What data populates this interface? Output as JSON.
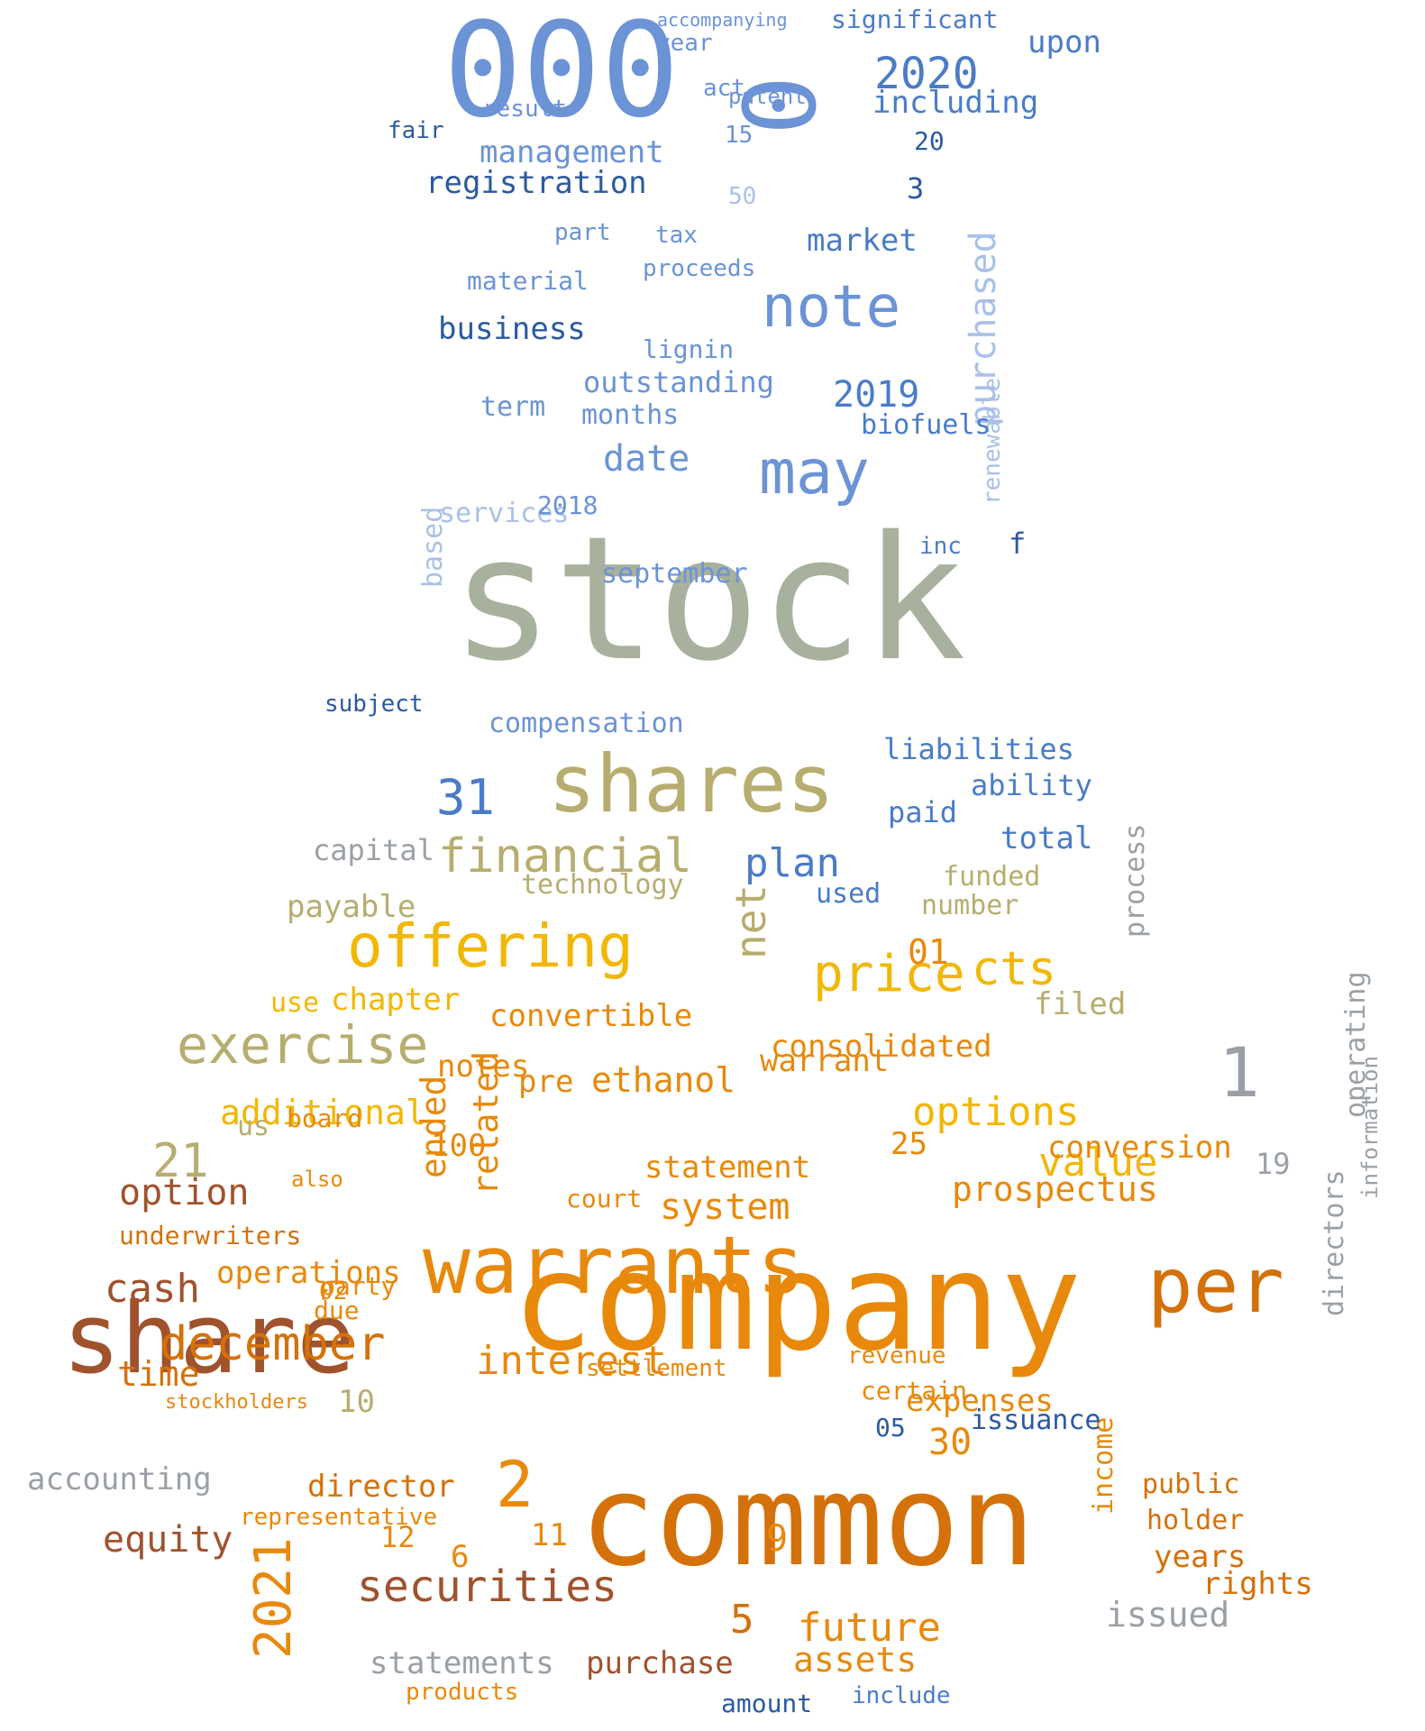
{
  "colors": {
    "blue_dark": "#2c5aa0",
    "blue": "#4a7cc7",
    "blue_mid": "#6b93d6",
    "blue_light": "#a9c1e6",
    "sage": "#a7b19d",
    "khaki": "#b7ad6f",
    "gold": "#f2b705",
    "orange": "#e8890c",
    "orange_dark": "#d4710a",
    "rust": "#a0522d",
    "gray": "#9aa0a6"
  },
  "words": [
    {
      "t": "stock",
      "c": "sage"
    },
    {
      "t": "company",
      "c": "orange"
    },
    {
      "t": "common",
      "c": "orange_dark"
    },
    {
      "t": "000",
      "c": "blue_mid"
    },
    {
      "t": "share",
      "c": "rust"
    },
    {
      "t": "warrants",
      "c": "orange"
    },
    {
      "t": "shares",
      "c": "khaki"
    },
    {
      "t": "per",
      "c": "orange_dark"
    },
    {
      "t": "note",
      "c": "blue_mid"
    },
    {
      "t": "may",
      "c": "blue_mid"
    },
    {
      "t": "0",
      "c": "blue_mid"
    },
    {
      "t": "purchased",
      "c": "blue_light"
    },
    {
      "t": "offering",
      "c": "gold"
    },
    {
      "t": "exercise",
      "c": "khaki"
    },
    {
      "t": "price",
      "c": "gold"
    },
    {
      "t": "financial",
      "c": "khaki"
    },
    {
      "t": "securities",
      "c": "rust"
    },
    {
      "t": "december",
      "c": "orange_dark"
    },
    {
      "t": "1",
      "c": "gray"
    },
    {
      "t": "2",
      "c": "orange"
    },
    {
      "t": "2021",
      "c": "orange"
    },
    {
      "t": "2020",
      "c": "blue"
    },
    {
      "t": "options",
      "c": "gold"
    },
    {
      "t": "interest",
      "c": "orange"
    },
    {
      "t": "prospectus",
      "c": "orange"
    },
    {
      "t": "value",
      "c": "gold"
    },
    {
      "t": "future",
      "c": "orange"
    },
    {
      "t": "cts",
      "c": "gold"
    },
    {
      "t": "plan",
      "c": "blue"
    },
    {
      "t": "31",
      "c": "blue"
    },
    {
      "t": "additional",
      "c": "gold"
    },
    {
      "t": "ethanol",
      "c": "orange"
    },
    {
      "t": "renewable",
      "c": "blue_light"
    },
    {
      "t": "net",
      "c": "khaki"
    },
    {
      "t": "process",
      "c": "gray"
    },
    {
      "t": "business",
      "c": "blue_dark"
    },
    {
      "t": "registration",
      "c": "blue_dark"
    },
    {
      "t": "management",
      "c": "blue_mid"
    },
    {
      "t": "date",
      "c": "blue_mid"
    },
    {
      "t": "2019",
      "c": "blue"
    },
    {
      "t": "outstanding",
      "c": "blue_mid"
    },
    {
      "t": "biofuels",
      "c": "blue"
    },
    {
      "t": "liabilities",
      "c": "blue"
    },
    {
      "t": "upon",
      "c": "blue"
    },
    {
      "t": "including",
      "c": "blue"
    },
    {
      "t": "significant",
      "c": "blue"
    },
    {
      "t": "market",
      "c": "blue"
    },
    {
      "t": "accounting",
      "c": "gray"
    },
    {
      "t": "statements",
      "c": "gray"
    },
    {
      "t": "directors",
      "c": "gray"
    },
    {
      "t": "operating",
      "c": "gray"
    },
    {
      "t": "information",
      "c": "gray"
    },
    {
      "t": "income",
      "c": "orange"
    },
    {
      "t": "expenses",
      "c": "orange"
    },
    {
      "t": "cash",
      "c": "rust"
    },
    {
      "t": "equity",
      "c": "rust"
    },
    {
      "t": "option",
      "c": "rust"
    },
    {
      "t": "time",
      "c": "orange_dark"
    },
    {
      "t": "director",
      "c": "orange_dark"
    },
    {
      "t": "system",
      "c": "orange"
    },
    {
      "t": "statement",
      "c": "orange"
    },
    {
      "t": "consolidated",
      "c": "orange"
    },
    {
      "t": "operations",
      "c": "orange"
    },
    {
      "t": "warrant",
      "c": "orange"
    },
    {
      "t": "notes",
      "c": "orange"
    },
    {
      "t": "assets",
      "c": "orange"
    },
    {
      "t": "purchase",
      "c": "rust"
    },
    {
      "t": "public",
      "c": "orange_dark"
    },
    {
      "t": "holder",
      "c": "orange_dark"
    },
    {
      "t": "years",
      "c": "orange_dark"
    },
    {
      "t": "rights",
      "c": "orange_dark"
    },
    {
      "t": "issued",
      "c": "gray"
    },
    {
      "t": "convertible",
      "c": "orange"
    },
    {
      "t": "chapter",
      "c": "gold"
    },
    {
      "t": "use",
      "c": "gold"
    },
    {
      "t": "payable",
      "c": "khaki"
    },
    {
      "t": "technology",
      "c": "khaki"
    },
    {
      "t": "capital",
      "c": "gray"
    },
    {
      "t": "funded",
      "c": "khaki"
    },
    {
      "t": "number",
      "c": "khaki"
    },
    {
      "t": "filed",
      "c": "khaki"
    },
    {
      "t": "total",
      "c": "blue"
    },
    {
      "t": "paid",
      "c": "blue"
    },
    {
      "t": "ability",
      "c": "blue"
    },
    {
      "t": "used",
      "c": "blue"
    },
    {
      "t": "compensation",
      "c": "blue_mid"
    },
    {
      "t": "services",
      "c": "blue_light"
    },
    {
      "t": "months",
      "c": "blue_mid"
    },
    {
      "t": "term",
      "c": "blue_mid"
    },
    {
      "t": "september",
      "c": "blue_mid"
    },
    {
      "t": "2018",
      "c": "blue_mid"
    },
    {
      "t": "tax",
      "c": "blue_mid"
    },
    {
      "t": "year",
      "c": "blue_mid"
    },
    {
      "t": "fair",
      "c": "blue_dark"
    },
    {
      "t": "based",
      "c": "blue_light"
    },
    {
      "t": "subject",
      "c": "blue_dark"
    },
    {
      "t": "inc",
      "c": "blue"
    },
    {
      "t": "material",
      "c": "blue_mid"
    },
    {
      "t": "lignin",
      "c": "blue_mid"
    },
    {
      "t": "proceeds",
      "c": "blue_mid"
    },
    {
      "t": "part",
      "c": "blue_mid"
    },
    {
      "t": "result",
      "c": "blue_mid"
    },
    {
      "t": "act",
      "c": "blue_mid"
    },
    {
      "t": "patent",
      "c": "blue_mid"
    },
    {
      "t": "accompanying",
      "c": "blue_mid"
    },
    {
      "t": "5",
      "c": "orange_dark"
    },
    {
      "t": "6",
      "c": "orange"
    },
    {
      "t": "9",
      "c": "orange"
    },
    {
      "t": "11",
      "c": "orange"
    },
    {
      "t": "12",
      "c": "orange"
    },
    {
      "t": "21",
      "c": "khaki"
    },
    {
      "t": "19",
      "c": "gray"
    },
    {
      "t": "30",
      "c": "orange"
    },
    {
      "t": "25",
      "c": "orange"
    },
    {
      "t": "100",
      "c": "orange"
    },
    {
      "t": "10",
      "c": "khaki"
    },
    {
      "t": "02",
      "c": "orange"
    },
    {
      "t": "01",
      "c": "orange"
    },
    {
      "t": "50",
      "c": "blue_light"
    },
    {
      "t": "3",
      "c": "blue_dark"
    },
    {
      "t": "15",
      "c": "blue_mid"
    },
    {
      "t": "20",
      "c": "blue_dark"
    },
    {
      "t": "05",
      "c": "blue_dark"
    },
    {
      "t": "f",
      "c": "blue_dark"
    },
    {
      "t": "us",
      "c": "khaki"
    },
    {
      "t": "pre",
      "c": "orange"
    },
    {
      "t": "ended",
      "c": "orange"
    },
    {
      "t": "related",
      "c": "orange"
    },
    {
      "t": "underwriters",
      "c": "orange_dark"
    },
    {
      "t": "court",
      "c": "orange"
    },
    {
      "t": "board",
      "c": "orange"
    },
    {
      "t": "also",
      "c": "orange"
    },
    {
      "t": "party",
      "c": "orange"
    },
    {
      "t": "due",
      "c": "orange"
    },
    {
      "t": "conversion",
      "c": "orange"
    },
    {
      "t": "revenue",
      "c": "orange"
    },
    {
      "t": "settlement",
      "c": "orange"
    },
    {
      "t": "certain",
      "c": "orange"
    },
    {
      "t": "issuance",
      "c": "blue_dark"
    },
    {
      "t": "amount",
      "c": "blue_dark"
    },
    {
      "t": "include",
      "c": "blue"
    },
    {
      "t": "products",
      "c": "orange"
    },
    {
      "t": "representative",
      "c": "orange"
    },
    {
      "t": "stockholders",
      "c": "orange"
    }
  ]
}
